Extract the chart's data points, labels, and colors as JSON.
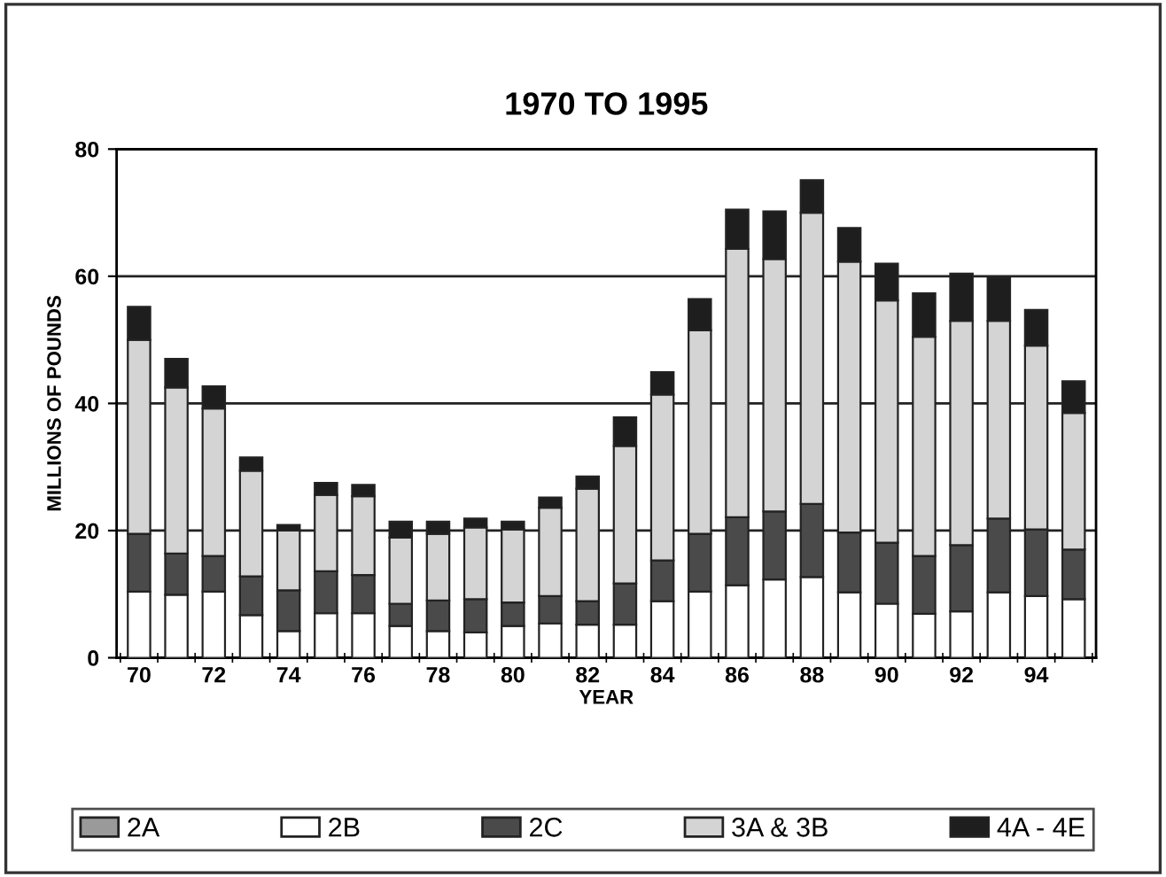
{
  "chart_data": {
    "type": "bar",
    "title": "1970 TO 1995",
    "xlabel": "YEAR",
    "ylabel": "MILLIONS OF POUNDS",
    "categories": [
      "70",
      null,
      "72",
      null,
      "74",
      null,
      "76",
      null,
      "78",
      null,
      "80",
      null,
      "82",
      null,
      "84",
      null,
      "86",
      null,
      "88",
      null,
      "90",
      null,
      "92",
      null,
      "94",
      null
    ],
    "stacked": true,
    "ylim": [
      0,
      80
    ],
    "yticks": [
      0,
      20,
      40,
      60,
      80
    ],
    "grid": "y",
    "legend": "bottom",
    "series": [
      {
        "name": "2A",
        "color": "#9a9a9a",
        "values": [
          0,
          0,
          0,
          0,
          0,
          0,
          0,
          0,
          0,
          0,
          0,
          0,
          0,
          0,
          0,
          0,
          0,
          0,
          0,
          0,
          0,
          0,
          0,
          0,
          0,
          0
        ]
      },
      {
        "name": "2B",
        "color": "#ffffff",
        "values": [
          10.4,
          9.9,
          10.4,
          6.7,
          4.2,
          7.0,
          7.0,
          5.0,
          4.2,
          4.0,
          5.0,
          5.4,
          5.2,
          5.2,
          8.9,
          10.4,
          11.4,
          12.3,
          12.7,
          10.3,
          8.5,
          6.9,
          7.3,
          10.3,
          9.7,
          9.2
        ]
      },
      {
        "name": "2C",
        "color": "#4a4a4a",
        "values": [
          9.1,
          6.5,
          5.6,
          6.1,
          6.4,
          6.6,
          6.0,
          3.5,
          4.8,
          5.2,
          3.7,
          4.3,
          3.7,
          6.5,
          6.4,
          9.1,
          10.7,
          10.7,
          11.5,
          9.4,
          9.6,
          9.1,
          10.4,
          11.6,
          10.5,
          7.8
        ]
      },
      {
        "name": "3A & 3B",
        "color": "#d4d4d4",
        "values": [
          30.5,
          26.1,
          23.2,
          16.6,
          9.4,
          12.0,
          12.4,
          10.4,
          10.5,
          11.3,
          11.5,
          13.9,
          17.7,
          21.6,
          26.1,
          32.0,
          42.2,
          39.7,
          45.8,
          42.6,
          38.1,
          34.5,
          35.3,
          31.1,
          28.9,
          21.5
        ]
      },
      {
        "name": "4A - 4E",
        "color": "#1e1e1e",
        "values": [
          5.2,
          4.5,
          3.5,
          2.1,
          0.9,
          1.9,
          1.8,
          2.5,
          1.9,
          1.4,
          1.2,
          1.6,
          1.9,
          4.5,
          3.5,
          4.9,
          6.2,
          7.5,
          5.1,
          5.3,
          5.8,
          6.8,
          7.4,
          6.7,
          5.6,
          5.0
        ]
      }
    ]
  }
}
